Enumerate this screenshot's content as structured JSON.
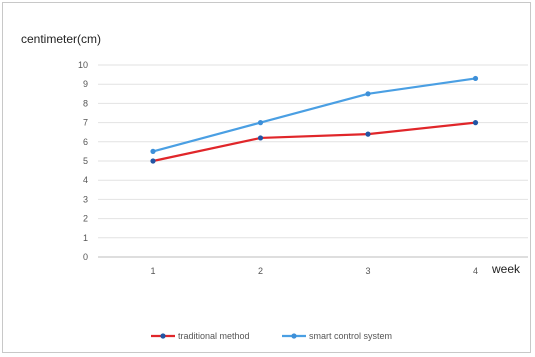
{
  "chart_data": {
    "type": "line",
    "title": "",
    "ylabel": "centimeter(cm)",
    "xlabel": "week",
    "categories": [
      "1",
      "2",
      "3",
      "4"
    ],
    "ylim": [
      0,
      10
    ],
    "yticks": [
      "0",
      "1",
      "2",
      "3",
      "4",
      "5",
      "6",
      "7",
      "8",
      "9",
      "10"
    ],
    "grid": true,
    "legend_position": "bottom",
    "series": [
      {
        "name": "traditional method",
        "values": [
          5.0,
          6.2,
          6.4,
          7.0
        ],
        "color": "#e0262a",
        "marker_color": "#2255a4"
      },
      {
        "name": "smart control system",
        "values": [
          5.5,
          7.0,
          8.5,
          9.3
        ],
        "color": "#4a9fe3",
        "marker_color": "#3d8fd8"
      }
    ]
  }
}
